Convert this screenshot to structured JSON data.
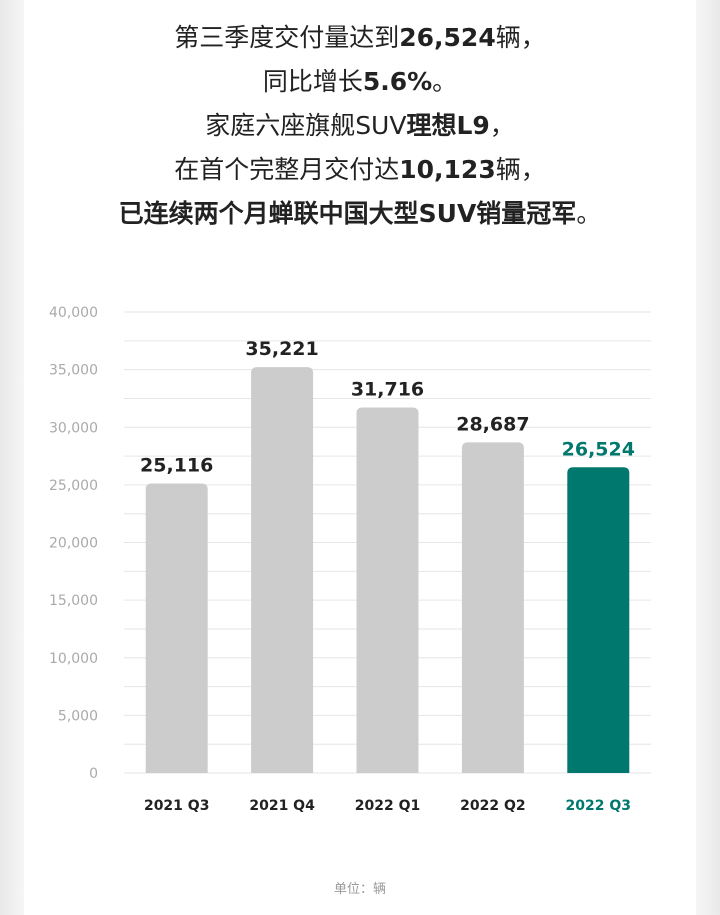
{
  "headline": {
    "line1": {
      "a": "第三季度交付量达到",
      "b": "26,524",
      "c": "辆，"
    },
    "line2": {
      "a": "同比增长",
      "b": "5.6%",
      "c": "。"
    },
    "line3": {
      "a": "家庭六座旗舰SUV",
      "b": "理想L9",
      "c": "，"
    },
    "line4": {
      "a": "在首个完整月交付达",
      "b": "10,123",
      "c": "辆，"
    },
    "line5": {
      "b": "已连续两个月蝉联中国大型SUV销量冠军",
      "c": "。"
    }
  },
  "unit_label": "单位：辆",
  "colors": {
    "bar": "#cccccc",
    "highlight": "#00786e",
    "grid": "#e6e6e6",
    "axis_text": "#aaaaaa",
    "label": "#222222"
  },
  "chart_data": {
    "type": "bar",
    "categories": [
      "2021 Q3",
      "2021 Q4",
      "2022 Q1",
      "2022 Q2",
      "2022 Q3"
    ],
    "values": [
      25116,
      35221,
      31716,
      28687,
      26524
    ],
    "data_labels": [
      "25,116",
      "35,221",
      "31,716",
      "28,687",
      "26,524"
    ],
    "highlight_index": 4,
    "ylim": [
      0,
      40000
    ],
    "yticks": [
      0,
      5000,
      10000,
      15000,
      20000,
      25000,
      30000,
      35000,
      40000
    ],
    "ytick_labels": [
      "0",
      "5,000",
      "10,000",
      "15,000",
      "20,000",
      "25,000",
      "30,000",
      "35,000",
      "40,000"
    ],
    "grid": true
  }
}
